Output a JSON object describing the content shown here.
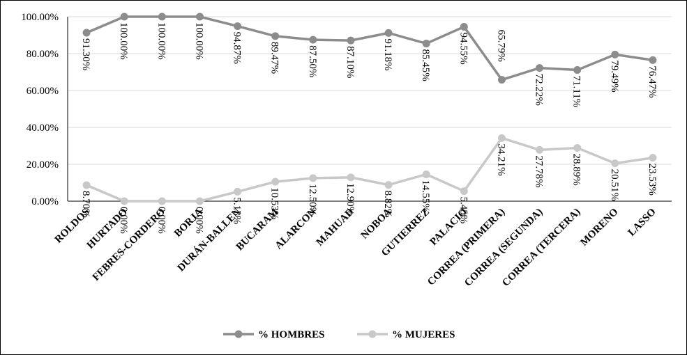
{
  "chart_data": {
    "type": "line",
    "title": "",
    "xlabel": "",
    "ylabel": "",
    "ylim": [
      0,
      100
    ],
    "yticks": [
      "0.00%",
      "20.00%",
      "40.00%",
      "60.00%",
      "80.00%",
      "100.00%"
    ],
    "grid": true,
    "legend_position": "bottom",
    "categories": [
      "ROLDOS",
      "HURTADO",
      "FEBRES-CORDERO",
      "BORJA",
      "DURÁN-BALLEN",
      "BUCARAM",
      "ALARCON",
      "MAHUAD",
      "NOBOA",
      "GUTIERREZ",
      "PALACIO",
      "CORREA (PRIMERA)",
      "CORREA (SEGUNDA)",
      "CORREA (TERCERA)",
      "MORENO",
      "LASSO"
    ],
    "series": [
      {
        "name": "% HOMBRES",
        "color": "#8c8c8c",
        "values": [
          91.3,
          100.0,
          100.0,
          100.0,
          94.87,
          89.47,
          87.5,
          87.1,
          91.18,
          85.45,
          94.55,
          65.79,
          72.22,
          71.11,
          79.49,
          76.47
        ],
        "labels": [
          "91.30%",
          "100.00%",
          "100.00%",
          "100.00%",
          "94.87%",
          "89.47%",
          "87.50%",
          "87.10%",
          "91.18%",
          "85.45%",
          "94.55%",
          "65.79%",
          "72.22%",
          "71.11%",
          "79.49%",
          "76.47%"
        ]
      },
      {
        "name": "% MUJERES",
        "color": "#c8c8c8",
        "values": [
          8.7,
          0.0,
          0.0,
          0.0,
          5.13,
          10.53,
          12.5,
          12.9,
          8.82,
          14.55,
          5.45,
          34.21,
          27.78,
          28.89,
          20.51,
          23.53
        ],
        "labels": [
          "8.70%",
          "0.00%",
          "0.00%",
          "0.00%",
          "5.13%",
          "10.53%",
          "12.50%",
          "12.90%",
          "8.82%",
          "14.55%",
          "5.45%",
          "34.21%",
          "27.78%",
          "28.89%",
          "20.51%",
          "23.53%"
        ]
      }
    ]
  }
}
